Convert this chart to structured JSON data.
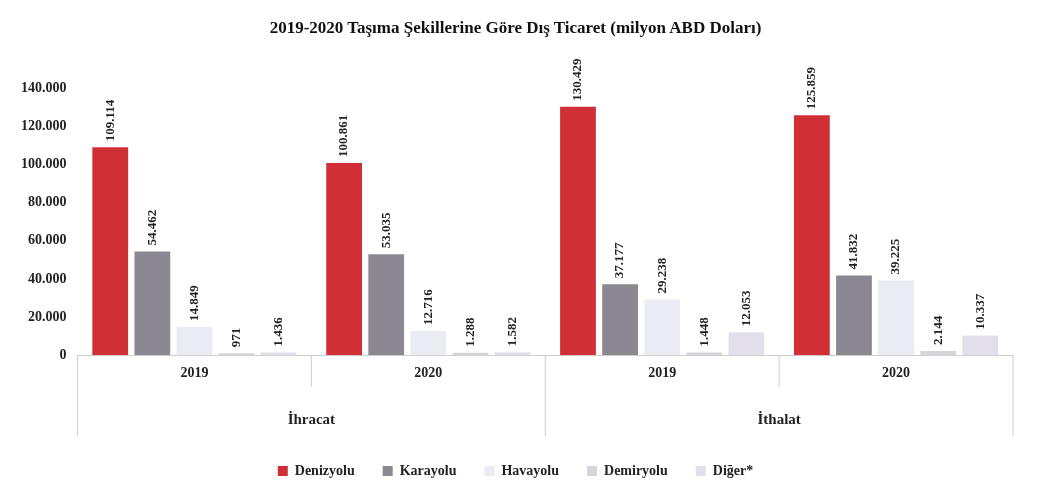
{
  "chart_data": {
    "type": "bar",
    "title": "2019-2020 Taşıma Şekillerine Göre Dış Ticaret (milyon ABD Doları)",
    "categories": [
      "2019",
      "2020",
      "2019",
      "2020"
    ],
    "annotations": [
      "İhracat",
      "İthalat"
    ],
    "series": [
      {
        "name": "Denizyolu",
        "color": "#d03035",
        "values": [
          109114,
          100861,
          130429,
          125859
        ],
        "value_labels": [
          "109.114",
          "100.861",
          "130.429",
          "125.859"
        ]
      },
      {
        "name": "Karayolu",
        "color": "#8c8892",
        "values": [
          54462,
          53035,
          37177,
          41832
        ],
        "value_labels": [
          "54.462",
          "53.035",
          "37.177",
          "41.832"
        ]
      },
      {
        "name": "Havayolu",
        "color": "#ebebf3",
        "values": [
          14849,
          12716,
          29238,
          39225
        ],
        "value_labels": [
          "14.849",
          "12.716",
          "29.238",
          "39.225"
        ]
      },
      {
        "name": "Demiryolu",
        "color": "#d6d6da",
        "values": [
          971,
          1288,
          1448,
          2144
        ],
        "value_labels": [
          "971",
          "1.288",
          "1.448",
          "2.144"
        ]
      },
      {
        "name": "Diğer*",
        "color": "#e2dfea",
        "values": [
          1436,
          1582,
          12053,
          10337
        ],
        "value_labels": [
          "1.436",
          "1.582",
          "12.053",
          "10.337"
        ]
      }
    ],
    "ylim": [
      0,
      140000
    ],
    "yticks": [
      {
        "value": 0,
        "label": "0"
      },
      {
        "value": 20000,
        "label": "20.000"
      },
      {
        "value": 40000,
        "label": "40.000"
      },
      {
        "value": 60000,
        "label": "60.000"
      },
      {
        "value": 80000,
        "label": "80.000"
      },
      {
        "value": 100000,
        "label": "100.000"
      },
      {
        "value": 120000,
        "label": "120.000"
      },
      {
        "value": 140000,
        "label": "140.000"
      }
    ],
    "grid": false,
    "legend": "bottom"
  }
}
